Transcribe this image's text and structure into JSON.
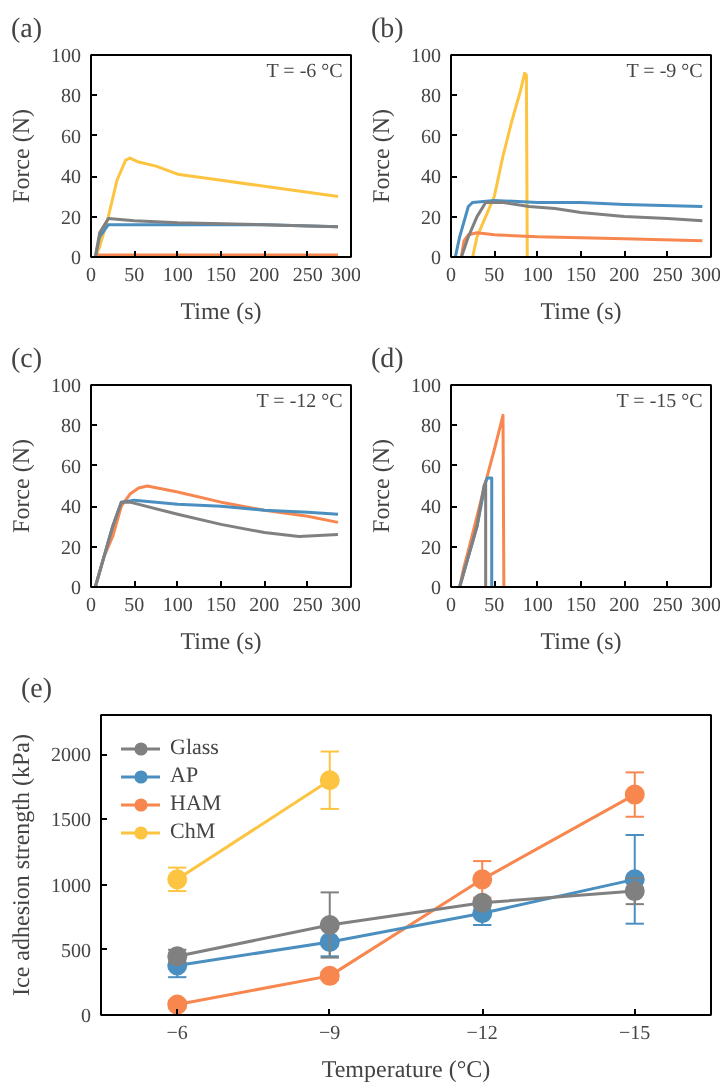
{
  "chart_data": [
    {
      "type": "line",
      "title": "(a)",
      "xlabel": "Time (s)",
      "ylabel": "Force (N)",
      "annotations": [
        "T = -6 °C"
      ],
      "xlim": [
        0,
        300
      ],
      "xticks": [
        0,
        50,
        100,
        150,
        200,
        250,
        300
      ],
      "ylim": [
        0,
        100
      ],
      "yticks": [
        0,
        20,
        40,
        60,
        80,
        100
      ],
      "grid": false,
      "marker": "none",
      "line_style": "solid",
      "series": [
        {
          "color": "#808080",
          "x": [
            5,
            10,
            20,
            50,
            100,
            200,
            285
          ],
          "values": [
            0,
            12,
            19,
            18,
            17,
            16,
            15
          ]
        },
        {
          "color": "#4a8fc0",
          "x": [
            5,
            10,
            20,
            50,
            100,
            200,
            285
          ],
          "values": [
            0,
            10,
            16,
            16,
            16,
            16,
            15
          ]
        },
        {
          "color": "#f7874f",
          "x": [
            5,
            285
          ],
          "values": [
            1,
            1
          ]
        },
        {
          "color": "#fcc440",
          "x": [
            5,
            10,
            20,
            30,
            40,
            45,
            55,
            75,
            100,
            150,
            200,
            250,
            285
          ],
          "values": [
            0,
            5,
            20,
            38,
            48,
            49,
            47,
            45,
            41,
            38,
            35,
            32,
            30
          ]
        }
      ]
    },
    {
      "type": "line",
      "title": "(b)",
      "xlabel": "Time (s)",
      "ylabel": "Force (N)",
      "annotations": [
        "T = -9 °C"
      ],
      "xlim": [
        0,
        300
      ],
      "xticks": [
        0,
        50,
        100,
        150,
        200,
        250,
        300
      ],
      "ylim": [
        0,
        100
      ],
      "yticks": [
        0,
        20,
        40,
        60,
        80,
        100
      ],
      "grid": false,
      "marker": "none",
      "line_style": "solid",
      "series": [
        {
          "color": "#808080",
          "x": [
            12,
            20,
            30,
            40,
            60,
            90,
            120,
            150,
            200,
            250,
            290
          ],
          "values": [
            0,
            10,
            20,
            27,
            27,
            25,
            24,
            22,
            20,
            19,
            18
          ]
        },
        {
          "color": "#4a8fc0",
          "x": [
            5,
            10,
            20,
            25,
            50,
            100,
            150,
            200,
            290
          ],
          "values": [
            0,
            10,
            25,
            27,
            28,
            27,
            27,
            26,
            25
          ]
        },
        {
          "color": "#f7874f",
          "x": [
            12,
            15,
            20,
            30,
            50,
            100,
            200,
            290
          ],
          "values": [
            0,
            8,
            11,
            12,
            11,
            10,
            9,
            8
          ]
        },
        {
          "color": "#fcc440",
          "x": [
            25,
            30,
            40,
            50,
            60,
            70,
            80,
            85,
            87,
            88
          ],
          "values": [
            0,
            10,
            20,
            30,
            50,
            67,
            82,
            91,
            90,
            0
          ]
        }
      ]
    },
    {
      "type": "line",
      "title": "(c)",
      "xlabel": "Time (s)",
      "ylabel": "Force (N)",
      "annotations": [
        "T = -12 °C"
      ],
      "xlim": [
        0,
        300
      ],
      "xticks": [
        0,
        50,
        100,
        150,
        200,
        250,
        300
      ],
      "ylim": [
        0,
        100
      ],
      "yticks": [
        0,
        20,
        40,
        60,
        80,
        100
      ],
      "grid": false,
      "marker": "none",
      "line_style": "solid",
      "series": [
        {
          "color": "#808080",
          "x": [
            5,
            15,
            25,
            35,
            45,
            100,
            150,
            200,
            240,
            285
          ],
          "values": [
            0,
            15,
            30,
            42,
            42,
            36,
            31,
            27,
            25,
            26
          ]
        },
        {
          "color": "#4a8fc0",
          "x": [
            5,
            15,
            25,
            35,
            50,
            100,
            150,
            200,
            250,
            285
          ],
          "values": [
            0,
            15,
            30,
            42,
            43,
            41,
            40,
            38,
            37,
            36
          ]
        },
        {
          "color": "#f7874f",
          "x": [
            5,
            15,
            25,
            35,
            45,
            55,
            65,
            100,
            150,
            200,
            250,
            285
          ],
          "values": [
            0,
            15,
            25,
            40,
            46,
            49,
            50,
            47,
            42,
            38,
            35,
            32
          ]
        }
      ]
    },
    {
      "type": "line",
      "title": "(d)",
      "xlabel": "Time (s)",
      "ylabel": "Force (N)",
      "annotations": [
        "T = -15 °C"
      ],
      "xlim": [
        0,
        300
      ],
      "xticks": [
        0,
        50,
        100,
        150,
        200,
        250,
        300
      ],
      "ylim": [
        0,
        100
      ],
      "yticks": [
        0,
        20,
        40,
        60,
        80,
        100
      ],
      "grid": false,
      "marker": "none",
      "line_style": "solid",
      "series": [
        {
          "color": "#808080",
          "x": [
            10,
            20,
            30,
            38,
            40,
            40
          ],
          "values": [
            0,
            15,
            30,
            50,
            52,
            0
          ]
        },
        {
          "color": "#4a8fc0",
          "x": [
            10,
            20,
            30,
            40,
            42,
            47,
            47
          ],
          "values": [
            0,
            15,
            30,
            52,
            54,
            54,
            0
          ]
        },
        {
          "color": "#f7874f",
          "x": [
            10,
            15,
            20,
            30,
            40,
            50,
            60,
            61
          ],
          "values": [
            0,
            10,
            18,
            35,
            52,
            68,
            85,
            0
          ]
        }
      ]
    },
    {
      "type": "line",
      "title": "(e)",
      "xlabel": "Temperature (°C)",
      "ylabel": "Ice adhesion strength (kPa)",
      "categories": [
        "−6",
        "−9",
        "−12",
        "−15"
      ],
      "ylim": [
        0,
        2300
      ],
      "yticks": [
        0,
        500,
        1000,
        1500,
        2000
      ],
      "grid": false,
      "marker": "circle",
      "line_style": "solid",
      "legend": "top left",
      "series": [
        {
          "name": "Glass",
          "color": "#808080",
          "values": [
            450,
            690,
            860,
            950
          ],
          "errors": [
            50,
            250,
            null,
            100
          ]
        },
        {
          "name": "AP",
          "color": "#4a8fc0",
          "values": [
            380,
            560,
            780,
            1040
          ],
          "errors": [
            90,
            110,
            90,
            340
          ]
        },
        {
          "name": "HAM",
          "color": "#f7874f",
          "values": [
            80,
            300,
            1040,
            1690
          ],
          "errors": [
            30,
            30,
            140,
            170
          ]
        },
        {
          "name": "ChM",
          "color": "#fcc440",
          "values": [
            1040,
            1800,
            null,
            null
          ],
          "errors": [
            90,
            220,
            null,
            null
          ]
        }
      ]
    }
  ]
}
